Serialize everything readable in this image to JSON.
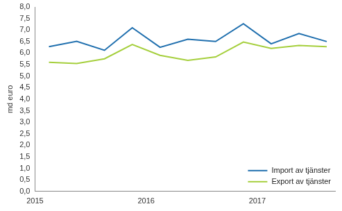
{
  "chart_data": {
    "type": "line",
    "y_label": "md euro",
    "x": [
      2015.125,
      2015.375,
      2015.625,
      2015.875,
      2016.125,
      2016.375,
      2016.625,
      2016.875,
      2017.125,
      2017.375,
      2017.625
    ],
    "series": [
      {
        "name": "Import av tjänster",
        "color": "#1f6fae",
        "values": [
          6.28,
          6.51,
          6.12,
          7.1,
          6.25,
          6.6,
          6.5,
          7.27,
          6.4,
          6.85,
          6.5
        ]
      },
      {
        "name": "Export av tjänster",
        "color": "#a5cf3c",
        "values": [
          5.6,
          5.55,
          5.75,
          6.37,
          5.9,
          5.68,
          5.83,
          6.48,
          6.2,
          6.33,
          6.28
        ]
      }
    ],
    "xlim": [
      2015,
      2017.7
    ],
    "xticks": [
      2015,
      2016,
      2017
    ],
    "ylim": [
      0,
      8
    ],
    "yticks": [
      {
        "value": 0,
        "label": "0,0"
      },
      {
        "value": 0.5,
        "label": "0,5"
      },
      {
        "value": 1,
        "label": "1,0"
      },
      {
        "value": 1.5,
        "label": "1,5"
      },
      {
        "value": 2,
        "label": "2,0"
      },
      {
        "value": 2.5,
        "label": "2,5"
      },
      {
        "value": 3,
        "label": "3,0"
      },
      {
        "value": 3.5,
        "label": "3,5"
      },
      {
        "value": 4,
        "label": "4,0"
      },
      {
        "value": 4.5,
        "label": "4,5"
      },
      {
        "value": 5,
        "label": "5,0"
      },
      {
        "value": 5.5,
        "label": "5,5"
      },
      {
        "value": 6,
        "label": "6,0"
      },
      {
        "value": 6.5,
        "label": "6,5"
      },
      {
        "value": 7,
        "label": "7,0"
      },
      {
        "value": 7.5,
        "label": "7,5"
      },
      {
        "value": 8,
        "label": "8,0"
      }
    ],
    "grid": false,
    "legend": "lower right"
  }
}
